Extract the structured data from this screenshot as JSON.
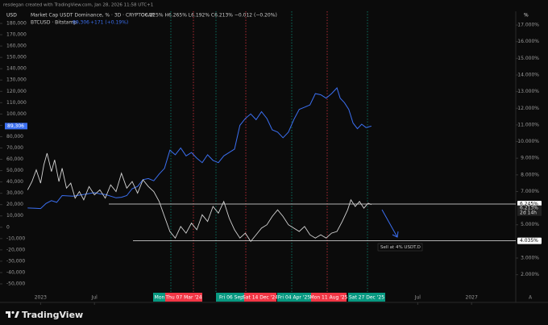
{
  "header": {
    "credit": "resdegan created with TradingView.com, Jan 28, 2026 11:58 UTC+1"
  },
  "footer": {
    "brand": "TradingView"
  },
  "chart_data": {
    "type": "line",
    "left_unit": "USD",
    "right_unit": "%",
    "corner_label": "A",
    "legend": [
      {
        "name": "Market Cap USDT Dominance, % · 3D · CRYPTOCAP",
        "quote": "O6.225%  H6.265%  L6.192%  C6.213%  −0.012 (−0.20%)"
      },
      {
        "name": "BTCUSD · Bitstamp",
        "quote": "89,306",
        "change": "+171 (+0.19%)"
      }
    ],
    "xlim": [
      2022.87,
      2027.41
    ],
    "xticks": [
      2023,
      {
        "value": 2023.5,
        "label": "Jul"
      },
      {
        "value": 2026.5,
        "label": "Jul"
      },
      2027
    ],
    "ylim": [
      -50000,
      180000
    ],
    "yticks": [
      {
        "value": 180000,
        "label": "180,000"
      },
      {
        "value": 170000,
        "label": "170,000"
      },
      {
        "value": 160000,
        "label": "160,000"
      },
      {
        "value": 150000,
        "label": "150,000"
      },
      {
        "value": 140000,
        "label": "140,000"
      },
      {
        "value": 130000,
        "label": "130,000"
      },
      {
        "value": 120000,
        "label": "120,000"
      },
      {
        "value": 110000,
        "label": "110,000"
      },
      {
        "value": 100000,
        "label": "100,000"
      },
      {
        "value": 90000,
        "label": "90,000"
      },
      {
        "value": 80000,
        "label": "80,000"
      },
      {
        "value": 70000,
        "label": "70,000"
      },
      {
        "value": 60000,
        "label": "60,000"
      },
      {
        "value": 50000,
        "label": "50,000"
      },
      {
        "value": 40000,
        "label": "40,000"
      },
      {
        "value": 30000,
        "label": "30,000"
      },
      {
        "value": 20000,
        "label": "20,000"
      },
      {
        "value": 10000,
        "label": "10,000"
      },
      0,
      {
        "value": -10000,
        "label": "-10,000"
      },
      {
        "value": -20000,
        "label": "-20,000"
      },
      {
        "value": -30000,
        "label": "-30,000"
      },
      {
        "value": -40000,
        "label": "-40,000"
      },
      {
        "value": -50000,
        "label": "-50,000"
      }
    ],
    "y2lim": [
      1.45,
      17.1
    ],
    "y2ticks": [
      {
        "value": 17,
        "label": "17.000%"
      },
      {
        "value": 16,
        "label": "16.000%"
      },
      {
        "value": 15,
        "label": "15.000%"
      },
      {
        "value": 14,
        "label": "14.000%"
      },
      {
        "value": 13,
        "label": "13.000%"
      },
      {
        "value": 12,
        "label": "12.000%"
      },
      {
        "value": 11,
        "label": "11.000%"
      },
      {
        "value": 10,
        "label": "10.000%"
      },
      {
        "value": 9,
        "label": "9.000%"
      },
      {
        "value": 8,
        "label": "8.000%"
      },
      {
        "value": 7,
        "label": "7.000%"
      },
      {
        "value": 5,
        "label": "5.000%"
      },
      {
        "value": 3,
        "label": "3.000%"
      },
      {
        "value": 2,
        "label": "2.000%"
      }
    ],
    "series": [
      {
        "name": "BTCUSD",
        "color": "#3b6ff0",
        "axis": "y",
        "x": [
          2022.88,
          2022.95,
          2023.0,
          2023.05,
          2023.1,
          2023.15,
          2023.2,
          2023.3,
          2023.4,
          2023.5,
          2023.55,
          2023.6,
          2023.7,
          2023.75,
          2023.8,
          2023.85,
          2023.9,
          2023.95,
          2024.0,
          2024.05,
          2024.1,
          2024.15,
          2024.2,
          2024.25,
          2024.3,
          2024.35,
          2024.4,
          2024.45,
          2024.5,
          2024.55,
          2024.6,
          2024.65,
          2024.7,
          2024.75,
          2024.8,
          2024.85,
          2024.9,
          2024.95,
          2025.0,
          2025.05,
          2025.1,
          2025.15,
          2025.2,
          2025.25,
          2025.3,
          2025.35,
          2025.4,
          2025.45,
          2025.5,
          2025.55,
          2025.6,
          2025.65,
          2025.7,
          2025.75,
          2025.78,
          2025.82,
          2025.86,
          2025.9,
          2025.94,
          2025.98,
          2026.02,
          2026.07
        ],
        "values": [
          17000,
          16800,
          16500,
          21000,
          23500,
          22000,
          28000,
          27500,
          29000,
          30500,
          29500,
          29000,
          26000,
          26500,
          28000,
          34000,
          36000,
          42000,
          43000,
          41000,
          47000,
          52000,
          68000,
          64000,
          70000,
          63000,
          66000,
          61000,
          57000,
          64000,
          59000,
          57000,
          63000,
          66000,
          69000,
          90000,
          96000,
          100000,
          95000,
          102000,
          96000,
          86000,
          84000,
          79000,
          84000,
          95000,
          104000,
          106000,
          108000,
          118000,
          117000,
          114000,
          118000,
          123000,
          114000,
          110000,
          104000,
          92000,
          87000,
          91000,
          88000,
          89306
        ]
      },
      {
        "name": "USDT.D",
        "color": "#d4d4d4",
        "axis": "y2",
        "x": [
          2022.88,
          2022.92,
          2022.96,
          2023.0,
          2023.03,
          2023.06,
          2023.1,
          2023.13,
          2023.17,
          2023.2,
          2023.24,
          2023.28,
          2023.32,
          2023.36,
          2023.4,
          2023.45,
          2023.5,
          2023.55,
          2023.6,
          2023.65,
          2023.7,
          2023.75,
          2023.8,
          2023.85,
          2023.9,
          2023.95,
          2024.0,
          2024.05,
          2024.1,
          2024.15,
          2024.2,
          2024.25,
          2024.3,
          2024.35,
          2024.4,
          2024.45,
          2024.5,
          2024.55,
          2024.6,
          2024.65,
          2024.7,
          2024.75,
          2024.8,
          2024.85,
          2024.9,
          2024.95,
          2025.0,
          2025.05,
          2025.1,
          2025.15,
          2025.2,
          2025.25,
          2025.3,
          2025.35,
          2025.4,
          2025.45,
          2025.5,
          2025.55,
          2025.6,
          2025.65,
          2025.7,
          2025.75,
          2025.8,
          2025.85,
          2025.88,
          2025.92,
          2025.96,
          2026.0,
          2026.04,
          2026.07
        ],
        "values": [
          7.1,
          7.6,
          8.3,
          7.5,
          8.6,
          9.3,
          8.2,
          8.9,
          7.6,
          8.4,
          7.2,
          7.5,
          6.6,
          7.0,
          6.5,
          7.3,
          6.8,
          7.1,
          6.6,
          7.4,
          7.0,
          8.1,
          7.2,
          7.6,
          6.9,
          7.7,
          7.3,
          7.0,
          6.4,
          5.5,
          4.6,
          4.2,
          4.9,
          4.5,
          5.1,
          4.7,
          5.6,
          5.2,
          6.1,
          5.7,
          6.4,
          5.4,
          4.7,
          4.2,
          4.5,
          4.0,
          4.4,
          4.8,
          5.0,
          5.5,
          5.9,
          5.5,
          5.0,
          4.8,
          4.6,
          4.9,
          4.4,
          4.2,
          4.4,
          4.2,
          4.5,
          4.6,
          5.2,
          5.9,
          6.5,
          6.1,
          6.4,
          6.0,
          6.3,
          6.213
        ]
      }
    ],
    "last_price": {
      "value": 89306,
      "label": "89,306"
    },
    "levels": [
      {
        "value": 6.245,
        "label": "6.245%"
      },
      {
        "value": 4.035,
        "label": "4.035%"
      }
    ],
    "dominance_last": {
      "value": 6.213,
      "label": "6.213%"
    },
    "countdown": "2d 14h",
    "annotation": "Sell at 4% USDT.D",
    "date_markers": [
      {
        "label": "Mon",
        "color": "#089981"
      },
      {
        "label": "Thu 07 Mar '24",
        "color": "#f23645"
      },
      {
        "label": "Fri 06 Sep",
        "color": "#089981"
      },
      {
        "label": "Sat 14 Dec '24",
        "color": "#f23645"
      },
      {
        "label": "Fri 04 Apr '25",
        "color": "#089981"
      },
      {
        "label": "Mon 11 Aug '25",
        "color": "#f23645"
      },
      {
        "label": "Sat 27 Dec '25",
        "color": "#089981"
      }
    ]
  }
}
